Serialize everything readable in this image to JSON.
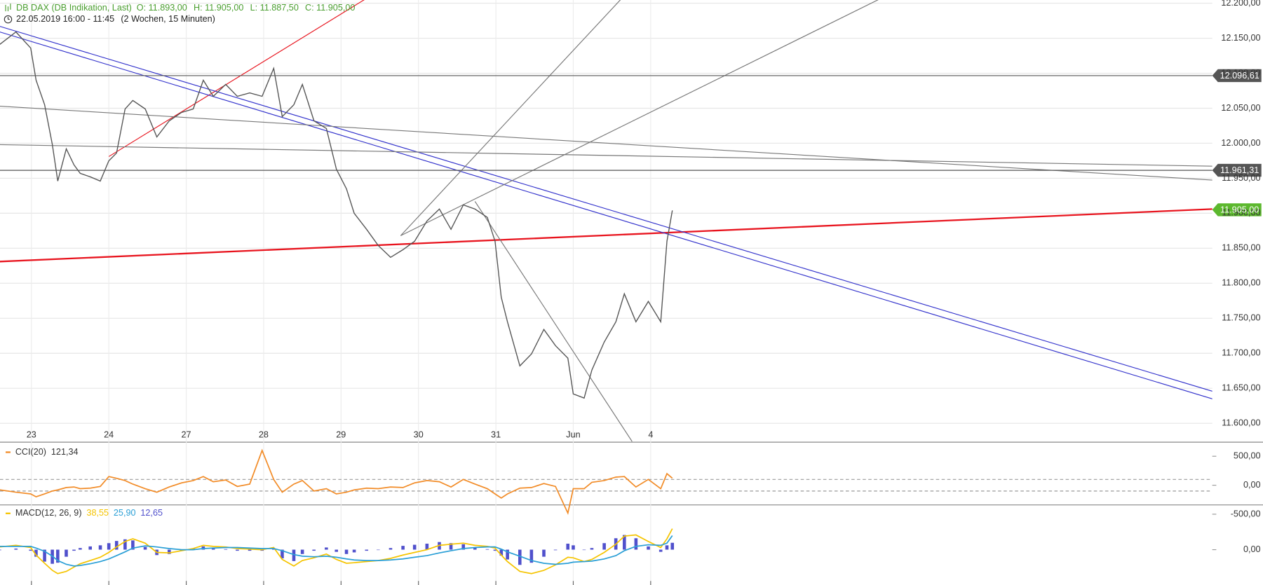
{
  "chart_data": [
    {
      "type": "line",
      "title": "DB DAX (DB Indikation, Last)",
      "ohlc": [
        "O: 11.893,00",
        "H: 11.905,00",
        "L: 11.887,50",
        "C: 11.905,00"
      ],
      "subtitle": "22.05.2019 16:00 - 11:45",
      "period": "(2 Wochen, 15 Minuten)",
      "x": [
        -0.41,
        -0.2,
        -0.01,
        0.06,
        0.17,
        0.27,
        0.34,
        0.45,
        0.55,
        0.63,
        0.76,
        0.89,
        1.0,
        1.1,
        1.21,
        1.31,
        1.47,
        1.62,
        1.78,
        1.94,
        2.09,
        2.22,
        2.35,
        2.51,
        2.66,
        2.82,
        2.98,
        3.13,
        3.24,
        3.39,
        3.5,
        3.65,
        3.81,
        3.94,
        4.07,
        4.17,
        4.33,
        4.48,
        4.64,
        4.8,
        4.95,
        5.11,
        5.27,
        5.42,
        5.58,
        5.73,
        5.89,
        5.99,
        6.07,
        6.15,
        6.31,
        6.46,
        6.62,
        6.77,
        6.93,
        7.0,
        7.14,
        7.24,
        7.4,
        7.55,
        7.66,
        7.81,
        7.97,
        8.13,
        8.21,
        8.28
      ],
      "series": [
        {
          "color": "#555555",
          "values": [
            12141,
            12159,
            12136,
            12090,
            12055,
            11998,
            11946,
            11992,
            11969,
            11957,
            11952,
            11946,
            11975,
            11986,
            12049,
            12061,
            12049,
            12009,
            12032,
            12044,
            12049,
            12090,
            12067,
            12084,
            12067,
            12072,
            12067,
            12107,
            12038,
            12055,
            12084,
            12032,
            12021,
            11963,
            11935,
            11900,
            11877,
            11854,
            11837,
            11848,
            11860,
            11889,
            11906,
            11877,
            11912,
            11906,
            11894,
            11860,
            11780,
            11745,
            11682,
            11699,
            11734,
            11711,
            11693,
            11642,
            11636,
            11676,
            11716,
            11745,
            11785,
            11745,
            11774,
            11745,
            11860,
            11904
          ]
        }
      ],
      "xlim": [
        -0.406,
        15.255
      ],
      "xticks": [
        {
          "value": 0,
          "label": "23"
        },
        {
          "value": 1,
          "label": "24"
        },
        {
          "value": 2,
          "label": "27"
        },
        {
          "value": 3,
          "label": "28"
        },
        {
          "value": 4,
          "label": "29"
        },
        {
          "value": 5,
          "label": "30"
        },
        {
          "value": 6,
          "label": "31"
        },
        {
          "value": 7,
          "label": "Jun"
        },
        {
          "value": 8,
          "label": "4"
        }
      ],
      "ylim": [
        11573.6,
        12204.6
      ],
      "yticks": [
        {
          "value": 11600,
          "label": "11.600,00"
        },
        {
          "value": 11650,
          "label": "11.650,00"
        },
        {
          "value": 11700,
          "label": "11.700,00"
        },
        {
          "value": 11750,
          "label": "11.750,00"
        },
        {
          "value": 11800,
          "label": "11.800,00"
        },
        {
          "value": 11850,
          "label": "11.850,00"
        },
        {
          "value": 11900,
          "label": "11.900,00"
        },
        {
          "value": 11950,
          "label": "11.950,00"
        },
        {
          "value": 12000,
          "label": "12.000,00"
        },
        {
          "value": 12050,
          "label": "12.050,00"
        },
        {
          "value": 12100,
          "label": "12.100,00"
        },
        {
          "value": 12150,
          "label": "12.150,00"
        },
        {
          "value": 12200,
          "label": "12.200,00"
        }
      ],
      "grid": true,
      "levels": [
        {
          "value": 12096.61,
          "label": "12.096,61",
          "color": "#555555",
          "line": true
        },
        {
          "value": 11961.31,
          "label": "11.961,31",
          "color": "#555555",
          "line": true
        },
        {
          "value": 11905.0,
          "label": "11.905,00",
          "color": "#5cb82e",
          "line": false
        }
      ],
      "trendlines": [
        {
          "color": "#e8141e",
          "width": 2,
          "x": [
            -0.41,
            15.26
          ],
          "y": [
            11831,
            11906
          ]
        },
        {
          "color": "#e8141e",
          "width": 1,
          "x": [
            1.0,
            4.3
          ],
          "y": [
            11981,
            12205
          ]
        },
        {
          "color": "#3333cc",
          "width": 1,
          "x": [
            -0.41,
            15.91
          ],
          "y": [
            12167,
            11624
          ]
        },
        {
          "color": "#3333cc",
          "width": 1,
          "x": [
            -0.41,
            15.91
          ],
          "y": [
            12159,
            11613
          ]
        },
        {
          "color": "#777777",
          "width": 1,
          "x": [
            -0.41,
            15.91
          ],
          "y": [
            12053,
            11943
          ]
        },
        {
          "color": "#777777",
          "width": 1,
          "x": [
            -0.41,
            15.91
          ],
          "y": [
            11998,
            11966
          ]
        },
        {
          "color": "#777777",
          "width": 1,
          "x": [
            4.77,
            7.61
          ],
          "y": [
            11868,
            12205
          ]
        },
        {
          "color": "#777777",
          "width": 1,
          "x": [
            4.77,
            10.94
          ],
          "y": [
            11868,
            12205
          ]
        },
        {
          "color": "#777777",
          "width": 1,
          "x": [
            5.73,
            7.76
          ],
          "y": [
            11917,
            11574
          ]
        }
      ]
    },
    {
      "type": "line",
      "title": "CCI(20)",
      "title_color": "#f28c28",
      "x": [
        -0.41,
        -0.2,
        -0.01,
        0.06,
        0.17,
        0.27,
        0.34,
        0.45,
        0.55,
        0.63,
        0.76,
        0.89,
        1.0,
        1.1,
        1.21,
        1.31,
        1.47,
        1.62,
        1.78,
        1.94,
        2.09,
        2.22,
        2.35,
        2.51,
        2.66,
        2.82,
        2.98,
        3.13,
        3.24,
        3.39,
        3.5,
        3.65,
        3.81,
        3.94,
        4.07,
        4.17,
        4.33,
        4.48,
        4.64,
        4.8,
        4.95,
        5.11,
        5.27,
        5.42,
        5.58,
        5.73,
        5.89,
        5.99,
        6.07,
        6.15,
        6.31,
        6.46,
        6.62,
        6.77,
        6.93,
        7.0,
        7.14,
        7.24,
        7.4,
        7.55,
        7.66,
        7.81,
        7.97,
        8.13,
        8.21,
        8.28
      ],
      "series": [
        {
          "color": "#f28c28",
          "style": "line",
          "last_value_label": "121,34",
          "values": [
            -80,
            -120,
            -150,
            -200,
            -150,
            -100,
            -80,
            -40,
            -30,
            -60,
            -50,
            -20,
            150,
            120,
            80,
            20,
            -60,
            -120,
            -30,
            40,
            80,
            150,
            60,
            90,
            -20,
            20,
            600,
            100,
            -120,
            20,
            80,
            -100,
            -60,
            -150,
            -120,
            -80,
            -50,
            -60,
            -30,
            -40,
            40,
            80,
            60,
            -30,
            100,
            20,
            -60,
            -150,
            -220,
            -150,
            -50,
            -40,
            30,
            -20,
            -480,
            -60,
            -60,
            50,
            80,
            140,
            150,
            -30,
            100,
            -60,
            200,
            121.34
          ]
        }
      ],
      "xlim": [
        -0.406,
        15.255
      ],
      "ylim": [
        -333,
        722
      ],
      "yticks": [
        {
          "value": 500,
          "label": "500,00"
        },
        {
          "value": 0,
          "label": "0,00"
        },
        {
          "value": -500,
          "label": "-500,00"
        }
      ],
      "reference_levels": [
        100,
        -100
      ]
    },
    {
      "type": "line",
      "title": "MACD(12, 26, 9)",
      "title_color": "#f5c400",
      "x": [
        -0.41,
        -0.2,
        -0.01,
        0.06,
        0.17,
        0.27,
        0.34,
        0.45,
        0.55,
        0.63,
        0.76,
        0.89,
        1.0,
        1.1,
        1.21,
        1.31,
        1.47,
        1.62,
        1.78,
        1.94,
        2.09,
        2.22,
        2.35,
        2.51,
        2.66,
        2.82,
        2.98,
        3.13,
        3.24,
        3.39,
        3.5,
        3.65,
        3.81,
        3.94,
        4.07,
        4.17,
        4.33,
        4.48,
        4.64,
        4.8,
        4.95,
        5.11,
        5.27,
        5.42,
        5.58,
        5.73,
        5.89,
        5.99,
        6.07,
        6.15,
        6.31,
        6.46,
        6.62,
        6.77,
        6.93,
        7.0,
        7.14,
        7.24,
        7.4,
        7.55,
        7.66,
        7.81,
        7.97,
        8.13,
        8.21,
        8.28
      ],
      "series": [
        {
          "color": "#5050cc",
          "style": "bar",
          "last_value_label": "12,65",
          "values": [
            -1,
            2,
            -2,
            -13,
            -22,
            -26,
            -24,
            -13,
            -2,
            3,
            6,
            8,
            12,
            16,
            19,
            17,
            5,
            -10,
            -8,
            -2,
            2,
            6,
            3,
            1,
            -2,
            -2,
            -2,
            2,
            -16,
            -21,
            -8,
            -2,
            4,
            -4,
            -8,
            -5,
            -2,
            0,
            3,
            7,
            9,
            11,
            14,
            12,
            10,
            4,
            1,
            -2,
            -11,
            -18,
            -28,
            -24,
            -13,
            -1,
            11,
            8,
            0,
            3,
            12,
            21,
            27,
            21,
            6,
            -4,
            8,
            12.65
          ]
        },
        {
          "color": "#f5c400",
          "style": "line",
          "last_value_label": "38,55",
          "values": [
            5,
            8,
            4,
            -10,
            -25,
            -38,
            -44,
            -40,
            -32,
            -26,
            -20,
            -14,
            -5,
            5,
            15,
            20,
            12,
            -5,
            -6,
            -2,
            2,
            8,
            6,
            5,
            2,
            1,
            0,
            4,
            -18,
            -30,
            -20,
            -15,
            -8,
            -18,
            -25,
            -24,
            -22,
            -20,
            -16,
            -10,
            -5,
            0,
            8,
            10,
            12,
            8,
            6,
            3,
            -10,
            -22,
            -40,
            -44,
            -38,
            -28,
            -14,
            -15,
            -22,
            -18,
            -5,
            10,
            25,
            27,
            15,
            4,
            20,
            38.55
          ]
        },
        {
          "color": "#2a9fd6",
          "style": "line",
          "last_value_label": "25,90",
          "values": [
            6,
            6,
            6,
            3,
            -3,
            -12,
            -20,
            -27,
            -30,
            -29,
            -26,
            -22,
            -17,
            -11,
            -4,
            3,
            7,
            5,
            2,
            0,
            0,
            2,
            3,
            4,
            4,
            3,
            2,
            2,
            -2,
            -9,
            -12,
            -13,
            -12,
            -14,
            -17,
            -19,
            -20,
            -20,
            -19,
            -17,
            -14,
            -11,
            -6,
            -2,
            2,
            4,
            5,
            5,
            1,
            -4,
            -12,
            -20,
            -25,
            -27,
            -25,
            -23,
            -22,
            -21,
            -17,
            -11,
            -2,
            6,
            9,
            8,
            12,
            25.9
          ]
        }
      ],
      "xlim": [
        -0.406,
        15.255
      ],
      "ylim": [
        -65,
        83
      ],
      "yticks": [
        {
          "value": 0,
          "label": "0,00"
        }
      ]
    }
  ]
}
